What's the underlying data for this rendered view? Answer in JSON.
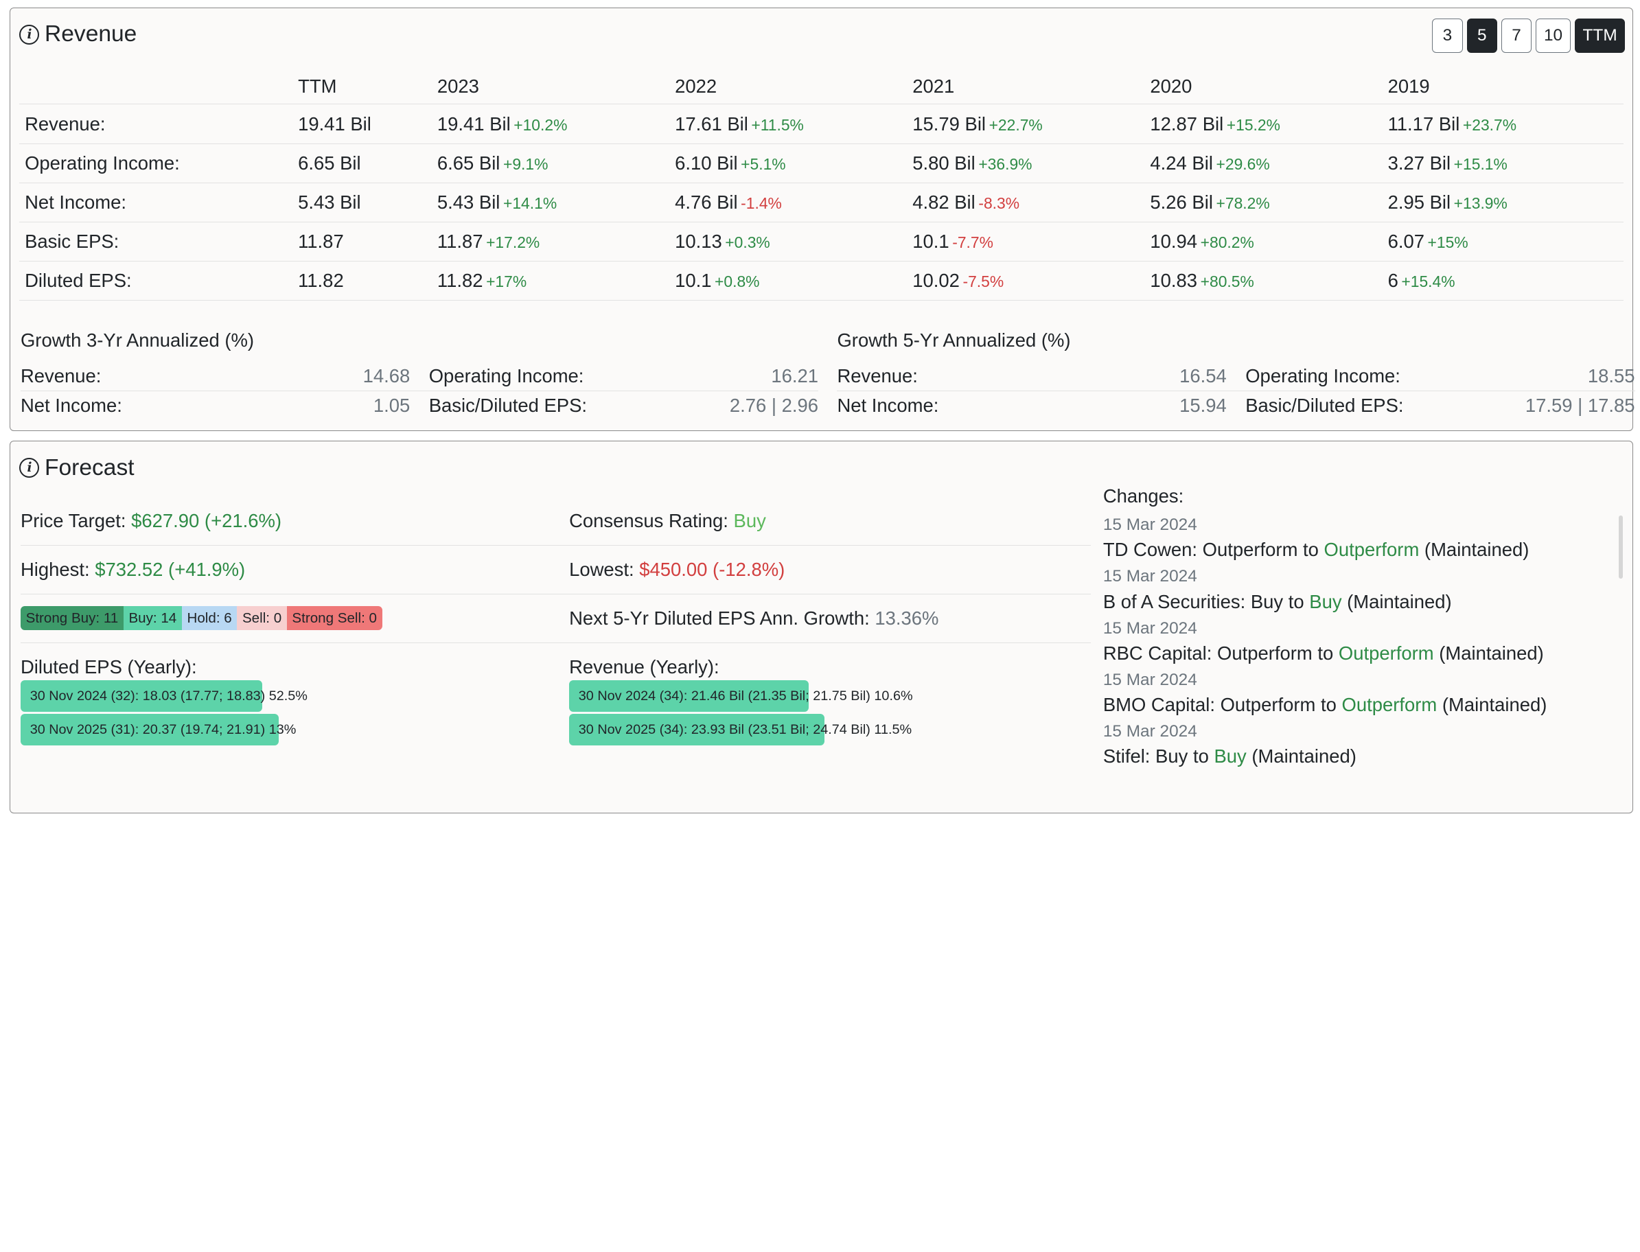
{
  "revenue": {
    "title": "Revenue",
    "periods": [
      "3",
      "5",
      "7",
      "10",
      "TTM"
    ],
    "active_periods": [
      "5",
      "TTM"
    ],
    "columns": [
      "",
      "TTM",
      "2023",
      "2022",
      "2021",
      "2020",
      "2019"
    ],
    "rows": [
      {
        "label": "Revenue:",
        "ttm": "19.41 Bil",
        "cells": [
          {
            "v": "19.41 Bil",
            "c": "+10.2%"
          },
          {
            "v": "17.61 Bil",
            "c": "+11.5%"
          },
          {
            "v": "15.79 Bil",
            "c": "+22.7%"
          },
          {
            "v": "12.87 Bil",
            "c": "+15.2%"
          },
          {
            "v": "11.17 Bil",
            "c": "+23.7%"
          }
        ]
      },
      {
        "label": "Operating Income:",
        "ttm": "6.65 Bil",
        "cells": [
          {
            "v": "6.65 Bil",
            "c": "+9.1%"
          },
          {
            "v": "6.10 Bil",
            "c": "+5.1%"
          },
          {
            "v": "5.80 Bil",
            "c": "+36.9%"
          },
          {
            "v": "4.24 Bil",
            "c": "+29.6%"
          },
          {
            "v": "3.27 Bil",
            "c": "+15.1%"
          }
        ]
      },
      {
        "label": "Net Income:",
        "ttm": "5.43 Bil",
        "cells": [
          {
            "v": "5.43 Bil",
            "c": "+14.1%"
          },
          {
            "v": "4.76 Bil",
            "c": "-1.4%"
          },
          {
            "v": "4.82 Bil",
            "c": "-8.3%"
          },
          {
            "v": "5.26 Bil",
            "c": "+78.2%"
          },
          {
            "v": "2.95 Bil",
            "c": "+13.9%"
          }
        ]
      },
      {
        "label": "Basic EPS:",
        "ttm": "11.87",
        "cells": [
          {
            "v": "11.87",
            "c": "+17.2%"
          },
          {
            "v": "10.13",
            "c": "+0.3%"
          },
          {
            "v": "10.1",
            "c": "-7.7%"
          },
          {
            "v": "10.94",
            "c": "+80.2%"
          },
          {
            "v": "6.07",
            "c": "+15%"
          }
        ]
      },
      {
        "label": "Diluted EPS:",
        "ttm": "11.82",
        "cells": [
          {
            "v": "11.82",
            "c": "+17%"
          },
          {
            "v": "10.1",
            "c": "+0.8%"
          },
          {
            "v": "10.02",
            "c": "-7.5%"
          },
          {
            "v": "10.83",
            "c": "+80.5%"
          },
          {
            "v": "6",
            "c": "+15.4%"
          }
        ]
      }
    ],
    "growth3": {
      "title": "Growth 3-Yr Annualized (%)",
      "revenue_label": "Revenue:",
      "revenue": "14.68",
      "opinc_label": "Operating Income:",
      "opinc": "16.21",
      "netinc_label": "Net Income:",
      "netinc": "1.05",
      "eps_label": "Basic/Diluted EPS:",
      "eps": "2.76 | 2.96"
    },
    "growth5": {
      "title": "Growth 5-Yr Annualized (%)",
      "revenue_label": "Revenue:",
      "revenue": "16.54",
      "opinc_label": "Operating Income:",
      "opinc": "18.55",
      "netinc_label": "Net Income:",
      "netinc": "15.94",
      "eps_label": "Basic/Diluted EPS:",
      "eps": "17.59 | 17.85"
    }
  },
  "forecast": {
    "title": "Forecast",
    "price_target_label": "Price Target:",
    "price_target": "$627.90 (+21.6%)",
    "consensus_label": "Consensus Rating:",
    "consensus": "Buy",
    "highest_label": "Highest:",
    "highest": "$732.52 (+41.9%)",
    "lowest_label": "Lowest:",
    "lowest": "$450.00 (-12.8%)",
    "ratings": {
      "strong_buy": "Strong Buy: 11",
      "buy": "Buy: 14",
      "hold": "Hold: 6",
      "sell": "Sell: 0",
      "strong_sell": "Strong Sell: 0"
    },
    "eps_growth_label": "Next 5-Yr Diluted EPS Ann. Growth:",
    "eps_growth": "13.36%",
    "eps_yearly": {
      "title": "Diluted EPS (Yearly):",
      "bars": [
        {
          "text": "30 Nov 2024 (32): 18.03 (17.77; 18.83) 52.5%",
          "fill": 0.44
        },
        {
          "text": "30 Nov 2025 (31): 20.37 (19.74; 21.91) 13%",
          "fill": 0.47
        }
      ]
    },
    "revenue_yearly": {
      "title": "Revenue (Yearly):",
      "bars": [
        {
          "text": "30 Nov 2024 (34): 21.46 Bil (21.35 Bil; 21.75 Bil) 10.6%",
          "fill": 0.46
        },
        {
          "text": "30 Nov 2025 (34): 23.93 Bil (23.51 Bil; 24.74 Bil) 11.5%",
          "fill": 0.49
        }
      ]
    },
    "changes_title": "Changes:",
    "changes": [
      {
        "date": "15 Mar 2024",
        "firm": "TD Cowen: Outperform to ",
        "rating": "Outperform",
        "status": " (Maintained)"
      },
      {
        "date": "15 Mar 2024",
        "firm": "B of A Securities: Buy to ",
        "rating": "Buy",
        "status": " (Maintained)"
      },
      {
        "date": "15 Mar 2024",
        "firm": "RBC Capital: Outperform to ",
        "rating": "Outperform",
        "status": " (Maintained)"
      },
      {
        "date": "15 Mar 2024",
        "firm": "BMO Capital: Outperform to ",
        "rating": "Outperform",
        "status": " (Maintained)"
      },
      {
        "date": "15 Mar 2024",
        "firm": "Stifel: Buy to ",
        "rating": "Buy",
        "status": " (Maintained)"
      }
    ]
  }
}
